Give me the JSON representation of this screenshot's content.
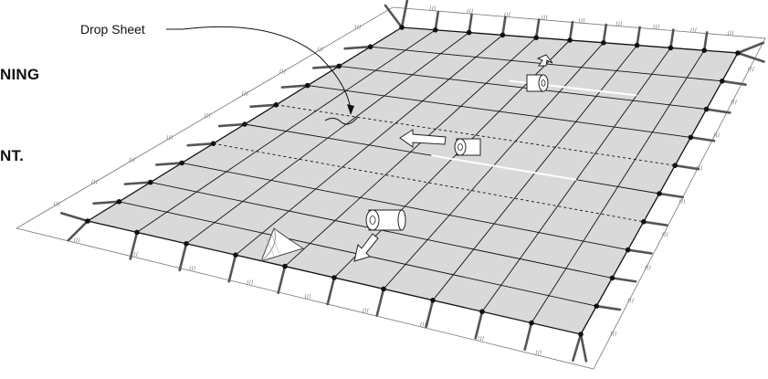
{
  "figure": {
    "side_text": [
      "NING",
      "NT."
    ],
    "drop_label": "Drop Sheet",
    "colors": {
      "cover": "#d9d9d9",
      "line": "#111111",
      "strap": "#555555",
      "ground": "#777777",
      "seam": "#ffffff"
    },
    "icons": [
      "roll-icon",
      "arrow-icon",
      "peel-corner-icon"
    ]
  }
}
